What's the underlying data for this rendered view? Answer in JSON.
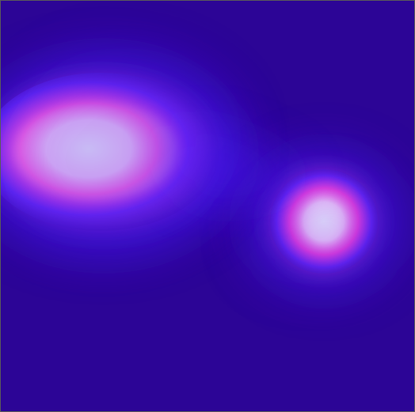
{
  "image": {
    "kind": "glow-field",
    "colors": {
      "background": "#2c0596",
      "halo": "#4b1dff",
      "mid": "#ff4fe1",
      "core": "#ffffff"
    },
    "sources": [
      {
        "name": "large-glow-blob",
        "intensity": 1.0
      },
      {
        "name": "small-glow-spot",
        "intensity": 0.82
      }
    ]
  }
}
